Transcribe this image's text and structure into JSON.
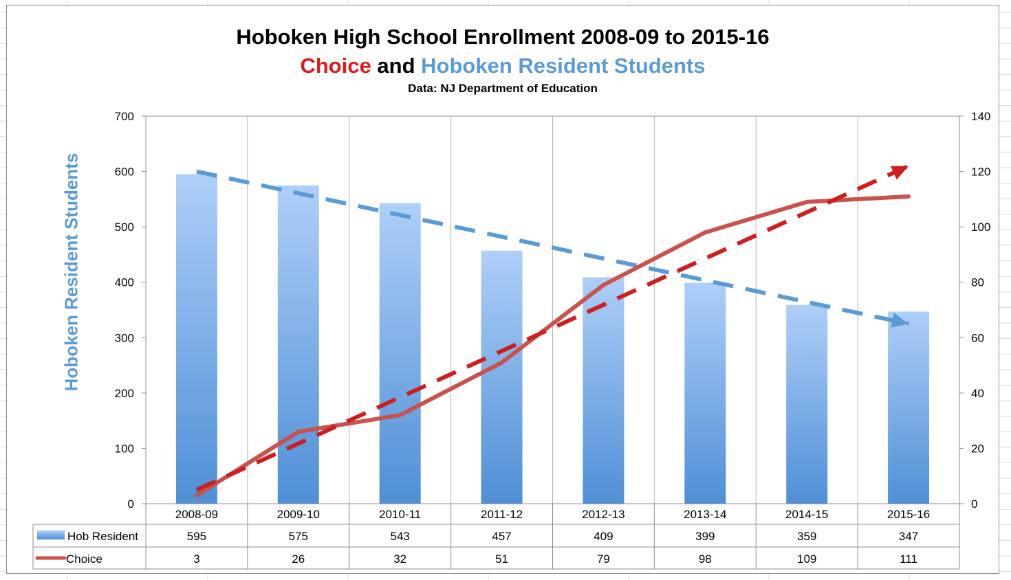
{
  "header": {
    "title": "Hoboken High School Enrollment 2008-09 to 2015-16",
    "subtitle_part1": "Choice",
    "subtitle_part2": " and ",
    "subtitle_part3": "Hoboken Resident Students",
    "source": "Data: NJ Department of Education"
  },
  "colors": {
    "resident": "#5b9bd5",
    "choice_line": "#c9524d",
    "choice_trend": "#cc1f1f",
    "resident_trend": "#5b9bd5"
  },
  "chart_data": {
    "type": "bar",
    "title": "Hoboken High School Enrollment 2008-09 to 2015-16",
    "subtitle": "Choice and Hoboken Resident Students",
    "note": "Data: NJ Department of Education",
    "categories": [
      "2008-09",
      "2009-10",
      "2010-11",
      "2011-12",
      "2012-13",
      "2013-14",
      "2014-15",
      "2015-16"
    ],
    "series": [
      {
        "name": "Hob Resident",
        "type": "bar",
        "axis": "left",
        "values": [
          595,
          575,
          543,
          457,
          409,
          399,
          359,
          347
        ]
      },
      {
        "name": "Choice",
        "type": "line",
        "axis": "right",
        "values": [
          3,
          26,
          32,
          51,
          79,
          98,
          109,
          111
        ]
      }
    ],
    "trendlines": [
      {
        "series": "Hob Resident",
        "style": "dashed-arrow",
        "axis": "left",
        "start": 600,
        "end": 325
      },
      {
        "series": "Choice",
        "style": "dashed-arrow",
        "axis": "right",
        "start": 5,
        "end": 122
      }
    ],
    "ylabel": "Hoboken Resident Students",
    "ylim": [
      0,
      700
    ],
    "yticks": [
      0,
      100,
      200,
      300,
      400,
      500,
      600,
      700
    ],
    "y2lim": [
      0,
      140
    ],
    "y2ticks": [
      0,
      20,
      40,
      60,
      80,
      100,
      120,
      140
    ],
    "grid": false,
    "legend": "data-table"
  }
}
